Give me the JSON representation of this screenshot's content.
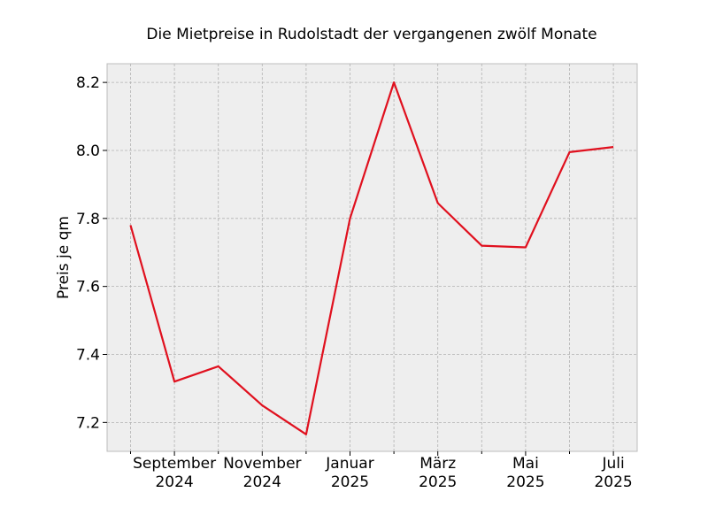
{
  "chart_data": {
    "type": "line",
    "title": "Die Mietpreise in Rudolstadt der vergangenen zwölf Monate",
    "xlabel": "",
    "ylabel": "Preis je qm",
    "x": [
      "2024-08",
      "2024-09",
      "2024-10",
      "2024-11",
      "2024-12",
      "2025-01",
      "2025-02",
      "2025-03",
      "2025-04",
      "2025-05",
      "2025-06",
      "2025-07"
    ],
    "series": [
      {
        "values": [
          7.78,
          7.32,
          7.365,
          7.25,
          7.165,
          7.8,
          8.2,
          7.845,
          7.72,
          7.715,
          7.995,
          8.01
        ],
        "color": "#e0101e"
      }
    ],
    "ylim": [
      7.115,
      8.255
    ],
    "yticks": [
      7.2,
      7.4,
      7.6,
      7.8,
      8.0,
      8.2
    ],
    "ytick_labels": [
      "7.2",
      "7.4",
      "7.6",
      "7.8",
      "8.0",
      "8.2"
    ],
    "xtick_labels": [
      {
        "index": 1,
        "lines": [
          "September",
          "2024"
        ]
      },
      {
        "index": 3,
        "lines": [
          "November",
          "2024"
        ]
      },
      {
        "index": 5,
        "lines": [
          "Januar",
          "2025"
        ]
      },
      {
        "index": 7,
        "lines": [
          "März",
          "2025"
        ]
      },
      {
        "index": 9,
        "lines": [
          "Mai",
          "2025"
        ]
      },
      {
        "index": 11,
        "lines": [
          "Juli",
          "2025"
        ]
      }
    ],
    "grid": true,
    "background": "#eeeeee"
  }
}
